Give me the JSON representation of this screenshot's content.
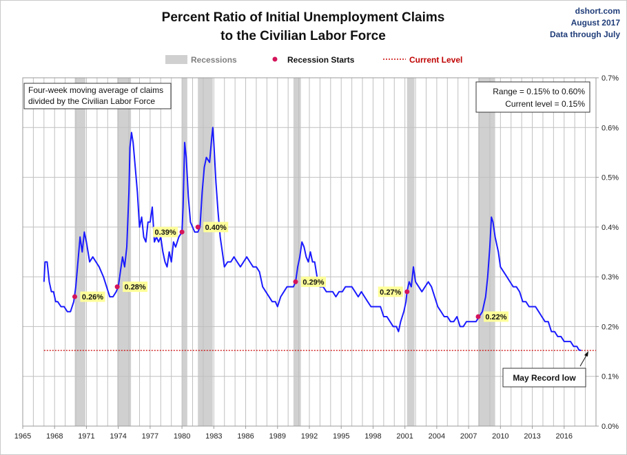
{
  "header": {
    "title_line1": "Percent Ratio of Initial Unemployment Claims",
    "title_line2": "to the Civilian Labor Force",
    "source_line1": "dshort.com",
    "source_line2": "August 2017",
    "source_line3": "Data through July"
  },
  "legend": {
    "recessions": "Recessions",
    "recession_starts": "Recession Starts",
    "current_level": "Current Level"
  },
  "notes": {
    "description_line1": "Four-week moving average of claims",
    "description_line2": "divided by the Civilian Labor Force",
    "range_line": "Range = 0.15% to 0.60%",
    "current_line": "Current level = 0.15%",
    "callout": "May Record low"
  },
  "colors": {
    "series": "#1a1aff",
    "recession_band": "#d0d0d0",
    "recession_marker": "#d4145a",
    "current_line": "#cc0000",
    "label_highlight": "#ffff99",
    "gridline": "#bfbfbf"
  },
  "chart_data": {
    "type": "line",
    "title": "Percent Ratio of Initial Unemployment Claims to the Civilian Labor Force",
    "xlabel": "",
    "ylabel": "",
    "xlim": [
      1965,
      2019
    ],
    "ylim": [
      0,
      0.7
    ],
    "x_ticks": [
      "1965",
      "1968",
      "1971",
      "1974",
      "1977",
      "1980",
      "1983",
      "1986",
      "1989",
      "1992",
      "1995",
      "1998",
      "2001",
      "2004",
      "2007",
      "2010",
      "2013",
      "2016"
    ],
    "y_ticks": [
      "0.0%",
      "0.1%",
      "0.2%",
      "0.3%",
      "0.4%",
      "0.5%",
      "0.6%",
      "0.7%"
    ],
    "grid": true,
    "legend_position": "top",
    "series": [
      {
        "name": "",
        "points": [
          [
            1967.0,
            0.29
          ],
          [
            1967.1,
            0.33
          ],
          [
            1967.3,
            0.33
          ],
          [
            1967.5,
            0.29
          ],
          [
            1967.7,
            0.27
          ],
          [
            1967.9,
            0.27
          ],
          [
            1968.1,
            0.25
          ],
          [
            1968.3,
            0.25
          ],
          [
            1968.6,
            0.24
          ],
          [
            1968.9,
            0.24
          ],
          [
            1969.2,
            0.23
          ],
          [
            1969.5,
            0.23
          ],
          [
            1969.8,
            0.25
          ],
          [
            1970.0,
            0.28
          ],
          [
            1970.2,
            0.33
          ],
          [
            1970.4,
            0.38
          ],
          [
            1970.6,
            0.35
          ],
          [
            1970.8,
            0.39
          ],
          [
            1971.0,
            0.37
          ],
          [
            1971.3,
            0.33
          ],
          [
            1971.6,
            0.34
          ],
          [
            1971.9,
            0.33
          ],
          [
            1972.2,
            0.32
          ],
          [
            1972.6,
            0.3
          ],
          [
            1972.9,
            0.28
          ],
          [
            1973.2,
            0.26
          ],
          [
            1973.5,
            0.26
          ],
          [
            1973.8,
            0.27
          ],
          [
            1974.0,
            0.28
          ],
          [
            1974.2,
            0.31
          ],
          [
            1974.4,
            0.34
          ],
          [
            1974.6,
            0.32
          ],
          [
            1974.8,
            0.36
          ],
          [
            1975.0,
            0.47
          ],
          [
            1975.1,
            0.56
          ],
          [
            1975.25,
            0.59
          ],
          [
            1975.4,
            0.57
          ],
          [
            1975.6,
            0.52
          ],
          [
            1975.8,
            0.47
          ],
          [
            1976.0,
            0.4
          ],
          [
            1976.2,
            0.42
          ],
          [
            1976.4,
            0.38
          ],
          [
            1976.6,
            0.37
          ],
          [
            1976.8,
            0.41
          ],
          [
            1977.0,
            0.41
          ],
          [
            1977.2,
            0.44
          ],
          [
            1977.4,
            0.37
          ],
          [
            1977.6,
            0.38
          ],
          [
            1977.8,
            0.37
          ],
          [
            1978.0,
            0.38
          ],
          [
            1978.2,
            0.35
          ],
          [
            1978.4,
            0.33
          ],
          [
            1978.6,
            0.32
          ],
          [
            1978.8,
            0.35
          ],
          [
            1979.0,
            0.33
          ],
          [
            1979.2,
            0.37
          ],
          [
            1979.4,
            0.36
          ],
          [
            1979.7,
            0.38
          ],
          [
            1980.0,
            0.39
          ],
          [
            1980.1,
            0.44
          ],
          [
            1980.25,
            0.57
          ],
          [
            1980.4,
            0.54
          ],
          [
            1980.6,
            0.46
          ],
          [
            1980.8,
            0.41
          ],
          [
            1981.0,
            0.4
          ],
          [
            1981.2,
            0.39
          ],
          [
            1981.5,
            0.39
          ],
          [
            1981.7,
            0.4
          ],
          [
            1981.9,
            0.47
          ],
          [
            1982.1,
            0.52
          ],
          [
            1982.3,
            0.54
          ],
          [
            1982.6,
            0.53
          ],
          [
            1982.8,
            0.58
          ],
          [
            1982.9,
            0.6
          ],
          [
            1983.0,
            0.57
          ],
          [
            1983.2,
            0.49
          ],
          [
            1983.4,
            0.43
          ],
          [
            1983.6,
            0.38
          ],
          [
            1983.8,
            0.35
          ],
          [
            1984.0,
            0.32
          ],
          [
            1984.3,
            0.33
          ],
          [
            1984.6,
            0.33
          ],
          [
            1984.9,
            0.34
          ],
          [
            1985.2,
            0.33
          ],
          [
            1985.5,
            0.32
          ],
          [
            1985.8,
            0.33
          ],
          [
            1986.1,
            0.34
          ],
          [
            1986.4,
            0.33
          ],
          [
            1986.7,
            0.32
          ],
          [
            1987.0,
            0.32
          ],
          [
            1987.3,
            0.31
          ],
          [
            1987.6,
            0.28
          ],
          [
            1987.9,
            0.27
          ],
          [
            1988.2,
            0.26
          ],
          [
            1988.5,
            0.25
          ],
          [
            1988.8,
            0.25
          ],
          [
            1989.0,
            0.24
          ],
          [
            1989.3,
            0.26
          ],
          [
            1989.6,
            0.27
          ],
          [
            1989.9,
            0.28
          ],
          [
            1990.2,
            0.28
          ],
          [
            1990.5,
            0.28
          ],
          [
            1990.7,
            0.29
          ],
          [
            1990.9,
            0.32
          ],
          [
            1991.1,
            0.34
          ],
          [
            1991.3,
            0.37
          ],
          [
            1991.5,
            0.36
          ],
          [
            1991.7,
            0.34
          ],
          [
            1991.9,
            0.33
          ],
          [
            1992.1,
            0.35
          ],
          [
            1992.3,
            0.33
          ],
          [
            1992.5,
            0.33
          ],
          [
            1992.8,
            0.29
          ],
          [
            1993.0,
            0.28
          ],
          [
            1993.3,
            0.28
          ],
          [
            1993.6,
            0.27
          ],
          [
            1993.9,
            0.27
          ],
          [
            1994.2,
            0.27
          ],
          [
            1994.5,
            0.26
          ],
          [
            1994.8,
            0.27
          ],
          [
            1995.1,
            0.27
          ],
          [
            1995.4,
            0.28
          ],
          [
            1995.7,
            0.28
          ],
          [
            1996.0,
            0.28
          ],
          [
            1996.3,
            0.27
          ],
          [
            1996.6,
            0.26
          ],
          [
            1996.9,
            0.27
          ],
          [
            1997.2,
            0.26
          ],
          [
            1997.5,
            0.25
          ],
          [
            1997.8,
            0.24
          ],
          [
            1998.1,
            0.24
          ],
          [
            1998.4,
            0.24
          ],
          [
            1998.7,
            0.24
          ],
          [
            1999.0,
            0.22
          ],
          [
            1999.3,
            0.22
          ],
          [
            1999.6,
            0.21
          ],
          [
            1999.9,
            0.2
          ],
          [
            2000.2,
            0.2
          ],
          [
            2000.4,
            0.19
          ],
          [
            2000.6,
            0.21
          ],
          [
            2000.9,
            0.23
          ],
          [
            2001.1,
            0.25
          ],
          [
            2001.2,
            0.27
          ],
          [
            2001.4,
            0.29
          ],
          [
            2001.6,
            0.28
          ],
          [
            2001.8,
            0.32
          ],
          [
            2002.0,
            0.29
          ],
          [
            2002.3,
            0.28
          ],
          [
            2002.6,
            0.27
          ],
          [
            2002.9,
            0.28
          ],
          [
            2003.2,
            0.29
          ],
          [
            2003.5,
            0.28
          ],
          [
            2003.8,
            0.26
          ],
          [
            2004.1,
            0.24
          ],
          [
            2004.4,
            0.23
          ],
          [
            2004.7,
            0.22
          ],
          [
            2005.0,
            0.22
          ],
          [
            2005.3,
            0.21
          ],
          [
            2005.6,
            0.21
          ],
          [
            2005.9,
            0.22
          ],
          [
            2006.2,
            0.2
          ],
          [
            2006.5,
            0.2
          ],
          [
            2006.8,
            0.21
          ],
          [
            2007.1,
            0.21
          ],
          [
            2007.4,
            0.21
          ],
          [
            2007.7,
            0.21
          ],
          [
            2008.0,
            0.22
          ],
          [
            2008.3,
            0.23
          ],
          [
            2008.6,
            0.26
          ],
          [
            2008.8,
            0.3
          ],
          [
            2009.0,
            0.36
          ],
          [
            2009.15,
            0.42
          ],
          [
            2009.3,
            0.41
          ],
          [
            2009.5,
            0.38
          ],
          [
            2009.8,
            0.35
          ],
          [
            2010.0,
            0.32
          ],
          [
            2010.3,
            0.31
          ],
          [
            2010.6,
            0.3
          ],
          [
            2010.9,
            0.29
          ],
          [
            2011.2,
            0.28
          ],
          [
            2011.5,
            0.28
          ],
          [
            2011.8,
            0.27
          ],
          [
            2012.1,
            0.25
          ],
          [
            2012.4,
            0.25
          ],
          [
            2012.7,
            0.24
          ],
          [
            2013.0,
            0.24
          ],
          [
            2013.3,
            0.24
          ],
          [
            2013.6,
            0.23
          ],
          [
            2013.9,
            0.22
          ],
          [
            2014.2,
            0.21
          ],
          [
            2014.5,
            0.21
          ],
          [
            2014.8,
            0.19
          ],
          [
            2015.1,
            0.19
          ],
          [
            2015.4,
            0.18
          ],
          [
            2015.7,
            0.18
          ],
          [
            2016.0,
            0.17
          ],
          [
            2016.3,
            0.17
          ],
          [
            2016.6,
            0.17
          ],
          [
            2016.9,
            0.16
          ],
          [
            2017.2,
            0.16
          ],
          [
            2017.4,
            0.153
          ],
          [
            2017.6,
            0.152
          ]
        ]
      }
    ],
    "recessions": [
      [
        1969.9,
        1970.9
      ],
      [
        1973.9,
        1975.2
      ],
      [
        1980.0,
        1980.5
      ],
      [
        1981.5,
        1982.9
      ],
      [
        1990.5,
        1991.2
      ],
      [
        2001.2,
        2001.9
      ],
      [
        2007.9,
        2009.5
      ]
    ],
    "recession_starts": [
      {
        "year": 1969.9,
        "value": 0.26,
        "label": "0.26%"
      },
      {
        "year": 1973.9,
        "value": 0.28,
        "label": "0.28%"
      },
      {
        "year": 1980.0,
        "value": 0.39,
        "label": "0.39%"
      },
      {
        "year": 1981.5,
        "value": 0.4,
        "label": "0.40%"
      },
      {
        "year": 1990.7,
        "value": 0.29,
        "label": "0.29%"
      },
      {
        "year": 2001.2,
        "value": 0.27,
        "label": "0.27%"
      },
      {
        "year": 2007.9,
        "value": 0.22,
        "label": "0.22%"
      }
    ],
    "current_level": 0.152
  }
}
